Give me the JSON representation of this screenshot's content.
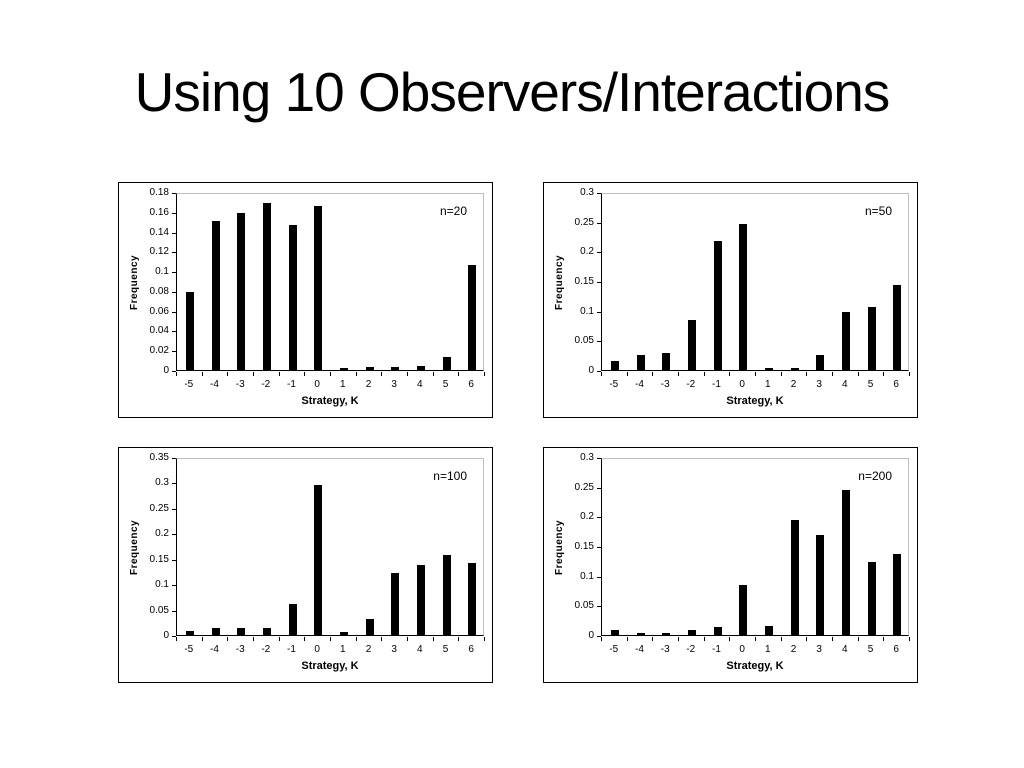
{
  "slide": {
    "title": "Using 10 Observers/Interactions"
  },
  "chart_data": [
    {
      "type": "bar",
      "n_label": "n=20",
      "title": "",
      "xlabel": "Strategy, K",
      "ylabel": "Frequency",
      "categories": [
        "-5",
        "-4",
        "-3",
        "-2",
        "-1",
        "0",
        "1",
        "2",
        "3",
        "4",
        "5",
        "6"
      ],
      "values": [
        0.079,
        0.151,
        0.159,
        0.169,
        0.147,
        0.166,
        0.002,
        0.003,
        0.003,
        0.004,
        0.013,
        0.106
      ],
      "ymax": 0.18,
      "yticks": [
        "0",
        "0.02",
        "0.04",
        "0.06",
        "0.08",
        "0.1",
        "0.12",
        "0.14",
        "0.16",
        "0.18"
      ],
      "bar_color": "#000000",
      "grid": false,
      "legend": "none"
    },
    {
      "type": "bar",
      "n_label": "n=50",
      "title": "",
      "xlabel": "Strategy, K",
      "ylabel": "Frequency",
      "categories": [
        "-5",
        "-4",
        "-3",
        "-2",
        "-1",
        "0",
        "1",
        "2",
        "3",
        "4",
        "5",
        "6"
      ],
      "values": [
        0.016,
        0.026,
        0.028,
        0.085,
        0.218,
        0.246,
        0.003,
        0.004,
        0.026,
        0.098,
        0.107,
        0.143
      ],
      "ymax": 0.3,
      "yticks": [
        "0",
        "0.05",
        "0.1",
        "0.15",
        "0.2",
        "0.25",
        "0.3"
      ],
      "bar_color": "#000000",
      "grid": false,
      "legend": "none"
    },
    {
      "type": "bar",
      "n_label": "n=100",
      "title": "",
      "xlabel": "Strategy, K",
      "ylabel": "Frequency",
      "categories": [
        "-5",
        "-4",
        "-3",
        "-2",
        "-1",
        "0",
        "1",
        "2",
        "3",
        "4",
        "5",
        "6"
      ],
      "values": [
        0.008,
        0.013,
        0.013,
        0.013,
        0.061,
        0.295,
        0.005,
        0.031,
        0.121,
        0.137,
        0.158,
        0.141
      ],
      "ymax": 0.35,
      "yticks": [
        "0",
        "0.05",
        "0.1",
        "0.15",
        "0.2",
        "0.25",
        "0.3",
        "0.35"
      ],
      "bar_color": "#000000",
      "grid": false,
      "legend": "none"
    },
    {
      "type": "bar",
      "n_label": "n=200",
      "title": "",
      "xlabel": "Strategy, K",
      "ylabel": "Frequency",
      "categories": [
        "-5",
        "-4",
        "-3",
        "-2",
        "-1",
        "0",
        "1",
        "2",
        "3",
        "4",
        "5",
        "6"
      ],
      "values": [
        0.008,
        0.003,
        0.003,
        0.008,
        0.013,
        0.085,
        0.016,
        0.194,
        0.168,
        0.244,
        0.123,
        0.136
      ],
      "ymax": 0.3,
      "yticks": [
        "0",
        "0.05",
        "0.1",
        "0.15",
        "0.2",
        "0.25",
        "0.3"
      ],
      "bar_color": "#000000",
      "grid": false,
      "legend": "none"
    }
  ]
}
